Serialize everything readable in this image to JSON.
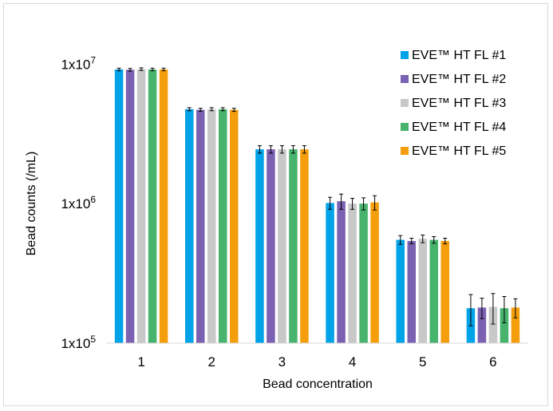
{
  "chart_data": {
    "type": "bar",
    "title": "",
    "xlabel": "Bead concentration",
    "ylabel": "Bead counts (/mL)",
    "yscale": "log",
    "ylim": [
      100000,
      17000000
    ],
    "yticks": [
      {
        "value": 100000,
        "base": "1x10",
        "exp": "5"
      },
      {
        "value": 1000000,
        "base": "1x10",
        "exp": "6"
      },
      {
        "value": 10000000,
        "base": "1x10",
        "exp": "7"
      }
    ],
    "grid": false,
    "legend_position": "top-right",
    "categories": [
      "1",
      "2",
      "3",
      "4",
      "5",
      "6"
    ],
    "series": [
      {
        "name": "EVE™ HT FL #1",
        "color": "#00a2e8",
        "values": [
          9150000,
          4750000,
          2450000,
          1010000,
          550000,
          178000
        ],
        "errors": [
          200000,
          120000,
          150000,
          100000,
          40000,
          45000
        ]
      },
      {
        "name": "EVE™ HT FL #2",
        "color": "#7b61b2",
        "values": [
          9100000,
          4700000,
          2450000,
          1040000,
          540000,
          180000
        ],
        "errors": [
          200000,
          120000,
          150000,
          130000,
          25000,
          30000
        ]
      },
      {
        "name": "EVE™ HT FL #3",
        "color": "#c8c8c8",
        "values": [
          9200000,
          4750000,
          2450000,
          1000000,
          560000,
          182000
        ],
        "errors": [
          200000,
          120000,
          150000,
          90000,
          35000,
          45000
        ]
      },
      {
        "name": "EVE™ HT FL #4",
        "color": "#47b36d",
        "values": [
          9150000,
          4750000,
          2450000,
          1000000,
          550000,
          178000
        ],
        "errors": [
          200000,
          120000,
          150000,
          100000,
          30000,
          38000
        ]
      },
      {
        "name": "EVE™ HT FL #5",
        "color": "#f59e0b",
        "values": [
          9150000,
          4700000,
          2450000,
          1020000,
          540000,
          180000
        ],
        "errors": [
          200000,
          120000,
          150000,
          120000,
          25000,
          28000
        ]
      }
    ]
  }
}
